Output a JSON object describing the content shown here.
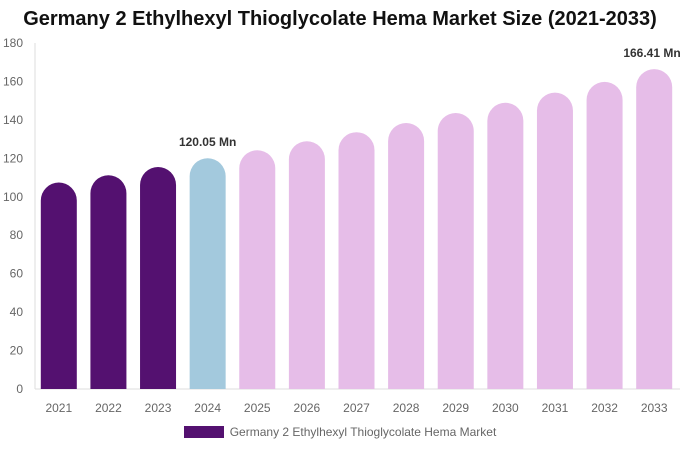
{
  "chart_data": {
    "type": "bar",
    "title": "Germany 2 Ethylhexyl Thioglycolate Hema Market Size (2021-2033)",
    "categories": [
      "2021",
      "2022",
      "2023",
      "2024",
      "2025",
      "2026",
      "2027",
      "2028",
      "2029",
      "2030",
      "2031",
      "2032",
      "2033"
    ],
    "series": [
      {
        "name": "Germany 2 Ethylhexyl Thioglycolate Hema Market",
        "values": [
          107.4,
          111.2,
          115.5,
          120.05,
          124.2,
          128.9,
          133.6,
          138.4,
          143.6,
          148.9,
          154.2,
          159.8,
          166.41
        ]
      }
    ],
    "data_labels": {
      "3": "120.05 Mn",
      "12": "166.41 Mn"
    },
    "ylim": [
      0,
      180
    ],
    "yticks": [
      0,
      20,
      40,
      60,
      80,
      100,
      120,
      140,
      160,
      180
    ],
    "xlabel": "",
    "ylabel": "",
    "grid": false,
    "legend": "bottom",
    "colors": {
      "historical": "#541170",
      "current": "#a3c9dd",
      "forecast": "#e6bde8"
    }
  }
}
